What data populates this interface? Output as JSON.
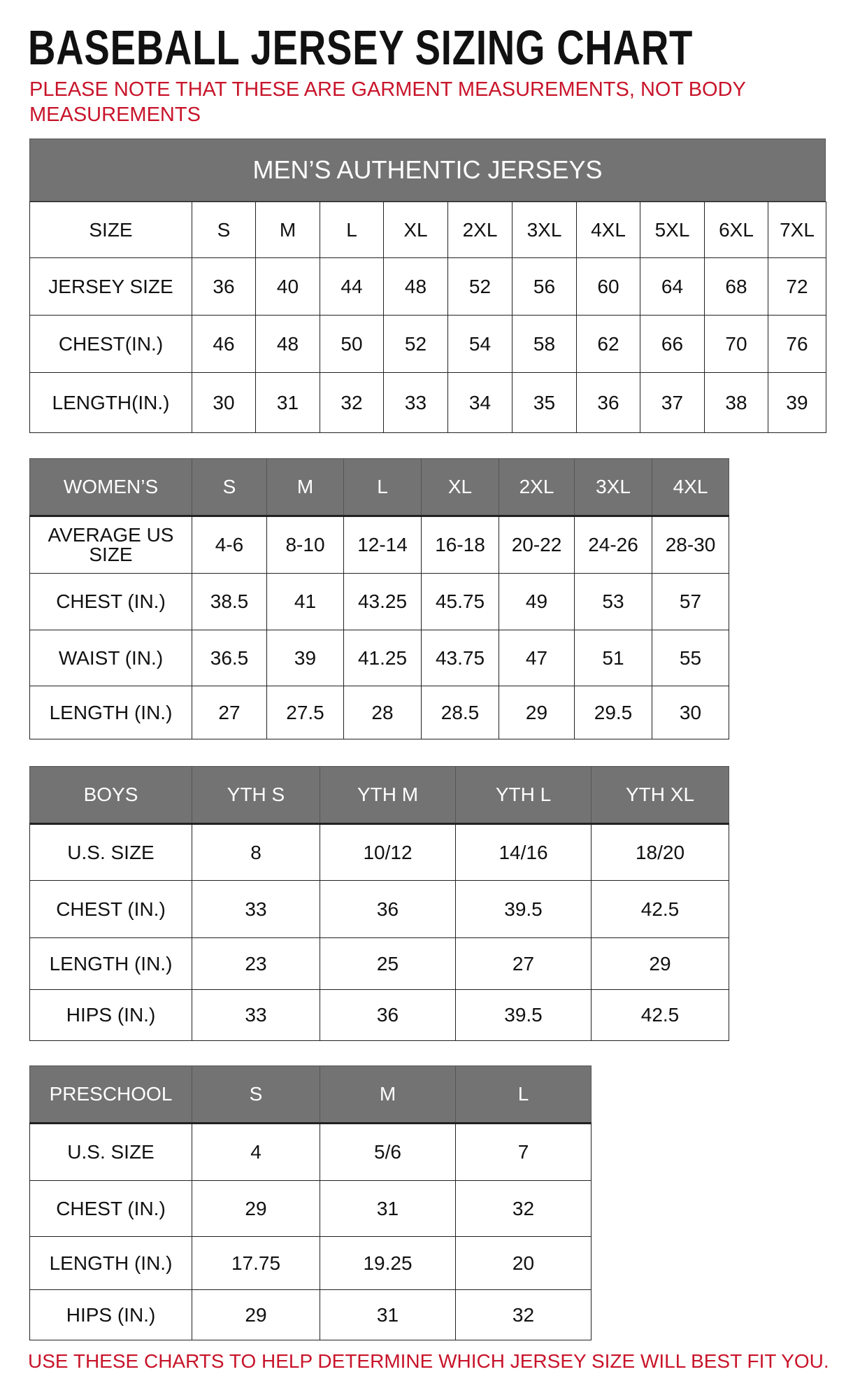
{
  "title": "BASEBALL JERSEY SIZING CHART",
  "note": "PLEASE NOTE THAT THESE ARE GARMENT MEASUREMENTS, NOT BODY MEASUREMENTS",
  "footer": "USE THESE CHARTS TO HELP DETERMINE WHICH JERSEY SIZE WILL BEST FIT YOU.",
  "colors": {
    "header_bg": "#737373",
    "note_red": "#c8142a"
  },
  "mens": {
    "caption": "MEN’S AUTHENTIC JERSEYS",
    "rows": [
      [
        "SIZE",
        "S",
        "M",
        "L",
        "XL",
        "2XL",
        "3XL",
        "4XL",
        "5XL",
        "6XL",
        "7XL"
      ],
      [
        "JERSEY SIZE",
        "36",
        "40",
        "44",
        "48",
        "52",
        "56",
        "60",
        "64",
        "68",
        "72"
      ],
      [
        "CHEST(IN.)",
        "46",
        "48",
        "50",
        "52",
        "54",
        "58",
        "62",
        "66",
        "70",
        "76"
      ],
      [
        "LENGTH(IN.)",
        "30",
        "31",
        "32",
        "33",
        "34",
        "35",
        "36",
        "37",
        "38",
        "39"
      ]
    ]
  },
  "womens": {
    "rows": [
      [
        "WOMEN’S",
        "S",
        "M",
        "L",
        "XL",
        "2XL",
        "3XL",
        "4XL"
      ],
      [
        "AVERAGE US SIZE",
        "4-6",
        "8-10",
        "12-14",
        "16-18",
        "20-22",
        "24-26",
        "28-30"
      ],
      [
        "CHEST (IN.)",
        "38.5",
        "41",
        "43.25",
        "45.75",
        "49",
        "53",
        "57"
      ],
      [
        "WAIST (IN.)",
        "36.5",
        "39",
        "41.25",
        "43.75",
        "47",
        "51",
        "55"
      ],
      [
        "LENGTH (IN.)",
        "27",
        "27.5",
        "28",
        "28.5",
        "29",
        "29.5",
        "30"
      ]
    ]
  },
  "boys": {
    "rows": [
      [
        "BOYS",
        "YTH S",
        "YTH M",
        "YTH L",
        "YTH XL"
      ],
      [
        "U.S. SIZE",
        "8",
        "10/12",
        "14/16",
        "18/20"
      ],
      [
        "CHEST (IN.)",
        "33",
        "36",
        "39.5",
        "42.5"
      ],
      [
        "LENGTH (IN.)",
        "23",
        "25",
        "27",
        "29"
      ],
      [
        "HIPS (IN.)",
        "33",
        "36",
        "39.5",
        "42.5"
      ]
    ]
  },
  "preschool": {
    "rows": [
      [
        "PRESCHOOL",
        "S",
        "M",
        "L"
      ],
      [
        "U.S. SIZE",
        "4",
        "5/6",
        "7"
      ],
      [
        "CHEST (IN.)",
        "29",
        "31",
        "32"
      ],
      [
        "LENGTH (IN.)",
        "17.75",
        "19.25",
        "20"
      ],
      [
        "HIPS (IN.)",
        "29",
        "31",
        "32"
      ]
    ]
  }
}
